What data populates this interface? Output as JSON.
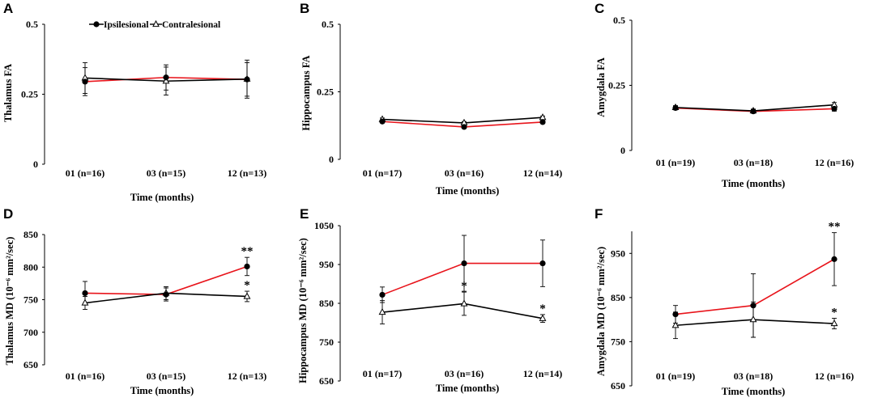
{
  "colors": {
    "ipsilesional": "#e8141b",
    "contralesional": "#000000",
    "axis": "#000000"
  },
  "legend": {
    "ipsi": "Ipsilesional",
    "contra": "Contralesional"
  },
  "chart_data": [
    {
      "panel": "A",
      "type": "line",
      "ylabel": "Thalamus FA",
      "xlabel": "Time (months)",
      "categories": [
        "01 (n=16)",
        "03 (n=15)",
        "12 (n=13)"
      ],
      "ylim": [
        0,
        0.5
      ],
      "yticks": [
        "0",
        "0.25",
        "0.5"
      ],
      "ytick_values": [
        0,
        0.25,
        0.5
      ],
      "series": [
        {
          "name": "Ipsilesional",
          "values": [
            0.295,
            0.31,
            0.303
          ],
          "err": [
            0.05,
            0.045,
            0.06
          ]
        },
        {
          "name": "Contralesional",
          "values": [
            0.308,
            0.297,
            0.304
          ],
          "err": [
            0.055,
            0.05,
            0.068
          ]
        }
      ],
      "annotations": [
        "",
        "",
        ""
      ]
    },
    {
      "panel": "B",
      "type": "line",
      "ylabel": "Hippocampus FA",
      "xlabel": "Time (months)",
      "categories": [
        "01 (n=17)",
        "03 (n=16)",
        "12 (n=14)"
      ],
      "ylim": [
        0,
        0.5
      ],
      "yticks": [
        "0",
        "0.25",
        "0.5"
      ],
      "ytick_values": [
        0,
        0.25,
        0.5
      ],
      "series": [
        {
          "name": "Ipsilesional",
          "values": [
            0.14,
            0.12,
            0.138
          ],
          "err": [
            0.005,
            0.005,
            0.005
          ]
        },
        {
          "name": "Contralesional",
          "values": [
            0.148,
            0.135,
            0.155
          ],
          "err": [
            0.005,
            0.005,
            0.005
          ]
        }
      ],
      "annotations": [
        "",
        "",
        ""
      ]
    },
    {
      "panel": "C",
      "type": "line",
      "ylabel": "Amygdala FA",
      "xlabel": "Time (months)",
      "categories": [
        "01 (n=19)",
        "03 (n=18)",
        "12 (n=16)"
      ],
      "ylim": [
        0,
        0.5
      ],
      "yticks": [
        "0",
        "0.25",
        "0.5"
      ],
      "ytick_values": [
        0,
        0.25,
        0.5
      ],
      "series": [
        {
          "name": "Ipsilesional",
          "values": [
            0.163,
            0.15,
            0.16
          ],
          "err": [
            0.007,
            0.007,
            0.009
          ]
        },
        {
          "name": "Contralesional",
          "values": [
            0.165,
            0.152,
            0.175
          ],
          "err": [
            0.007,
            0.007,
            0.009
          ]
        }
      ],
      "annotations": [
        "",
        "",
        ""
      ]
    },
    {
      "panel": "D",
      "type": "line",
      "ylabel": "Thalamus MD (10⁻⁶ mm²/sec)",
      "xlabel": "Time (months)",
      "categories": [
        "01 (n=16)",
        "03 (n=15)",
        "12 (n=13)"
      ],
      "ylim": [
        650,
        850
      ],
      "yticks": [
        "650",
        "700",
        "750",
        "800",
        "850"
      ],
      "ytick_values": [
        650,
        700,
        750,
        800,
        850
      ],
      "series": [
        {
          "name": "Ipsilesional",
          "values": [
            760,
            758,
            801
          ],
          "err": [
            18,
            10,
            14
          ]
        },
        {
          "name": "Contralesional",
          "values": [
            745,
            760,
            755
          ],
          "err": [
            10,
            10,
            8
          ]
        }
      ],
      "annotations": [
        "",
        "",
        "**"
      ],
      "annotations_contra": [
        "",
        "",
        "*"
      ]
    },
    {
      "panel": "E",
      "type": "line",
      "ylabel": "Hippocampus MD (10⁻⁶ mm²/sec)",
      "xlabel": "Time (months)",
      "categories": [
        "01 (n=17)",
        "03 (n=16)",
        "12 (n=14)"
      ],
      "ylim": [
        650,
        1050
      ],
      "yticks": [
        "650",
        "750",
        "850",
        "950",
        "1050"
      ],
      "ytick_values": [
        650,
        750,
        850,
        950,
        1050
      ],
      "series": [
        {
          "name": "Ipsilesional",
          "values": [
            872,
            953,
            953
          ],
          "err": [
            20,
            72,
            60
          ]
        },
        {
          "name": "Contralesional",
          "values": [
            827,
            849,
            811
          ],
          "err": [
            30,
            30,
            10
          ]
        }
      ],
      "annotations": [
        "",
        "",
        ""
      ],
      "annotations_contra": [
        "",
        "*",
        "*"
      ]
    },
    {
      "panel": "F",
      "type": "line",
      "ylabel": "Amygdala MD (10⁻⁶ mm²/sec)",
      "xlabel": "Time (months)",
      "categories": [
        "01 (n=19)",
        "03 (n=18)",
        "12 (n=16)"
      ],
      "ylim": [
        650,
        1000
      ],
      "yticks": [
        "650",
        "750",
        "850",
        "950"
      ],
      "ytick_values": [
        650,
        750,
        850,
        950
      ],
      "series": [
        {
          "name": "Ipsilesional",
          "values": [
            812,
            832,
            937
          ],
          "err": [
            20,
            72,
            60
          ]
        },
        {
          "name": "Contralesional",
          "values": [
            787,
            800,
            791
          ],
          "err": [
            30,
            40,
            12
          ]
        }
      ],
      "annotations": [
        "",
        "",
        "**"
      ],
      "annotations_contra": [
        "",
        "",
        "*"
      ]
    }
  ]
}
